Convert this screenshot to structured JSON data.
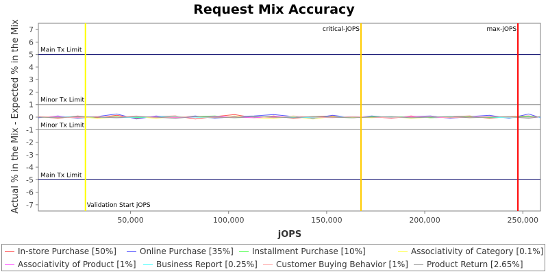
{
  "chart_data": {
    "type": "line",
    "title": "Request Mix Accuracy",
    "xlabel": "jOPS",
    "ylabel": "Actual % in the Mix - Expected % in the Mix",
    "xlim": [
      3000,
      259000
    ],
    "ylim": [
      -7.5,
      7.5
    ],
    "x_ticks": [
      50000,
      100000,
      150000,
      200000,
      250000
    ],
    "x_tick_labels": [
      "50,000",
      "100,000",
      "150,000",
      "200,000",
      "250,000"
    ],
    "y_ticks": [
      -7,
      -6,
      -5,
      -4,
      -3,
      -2,
      -1,
      0,
      1,
      2,
      3,
      4,
      5,
      6,
      7
    ],
    "y_tick_labels": [
      "-7",
      "-6",
      "-5",
      "-4",
      "-3",
      "-2",
      "-1",
      "0",
      "1",
      "2",
      "3",
      "4",
      "5",
      "6",
      "7"
    ],
    "horizontal_lines": [
      {
        "y": 5,
        "label": "Main Tx Limit",
        "color": "#000066"
      },
      {
        "y": 1,
        "label": "Minor Tx Limit",
        "color": "#888888"
      },
      {
        "y": -1,
        "label": "Minor Tx Limit",
        "color": "#888888"
      },
      {
        "y": -5,
        "label": "Main Tx Limit",
        "color": "#000066"
      }
    ],
    "vertical_lines": [
      {
        "x": 27000,
        "label": "Validation Start jOPS",
        "color": "#ffff00",
        "label_pos": "bottom"
      },
      {
        "x": 167500,
        "label": "critical-jOPS",
        "color": "#ffcc00",
        "label_pos": "top"
      },
      {
        "x": 247500,
        "label": "max-jOPS",
        "color": "#ff0000",
        "label_pos": "top"
      }
    ],
    "x": [
      3000,
      13000,
      23000,
      33000,
      43000,
      53000,
      63000,
      73000,
      83000,
      93000,
      103000,
      113000,
      123000,
      133000,
      143000,
      153000,
      163000,
      173000,
      183000,
      193000,
      203000,
      213000,
      223000,
      233000,
      243000,
      253000,
      259000
    ],
    "series": [
      {
        "name": "In-store Purchase [50%]",
        "color": "#ff5555",
        "values": [
          0.05,
          -0.1,
          0.1,
          -0.05,
          0.15,
          -0.1,
          0.05,
          0.1,
          -0.15,
          0.05,
          0.2,
          -0.05,
          0.1,
          -0.1,
          0.05,
          0.1,
          -0.05,
          0.05,
          -0.1,
          0.1,
          -0.05,
          0.05,
          0.1,
          -0.1,
          0.05,
          0.1,
          0.0
        ]
      },
      {
        "name": "Online Purchase [35%]",
        "color": "#5555ff",
        "values": [
          -0.05,
          0.1,
          -0.1,
          0.05,
          0.25,
          -0.15,
          0.1,
          -0.05,
          0.1,
          -0.1,
          0.05,
          0.1,
          0.2,
          0.05,
          -0.1,
          0.15,
          -0.05,
          0.1,
          -0.05,
          0.05,
          0.1,
          -0.1,
          0.05,
          0.15,
          -0.1,
          0.25,
          -0.05
        ]
      },
      {
        "name": "Installment Purchase [10%]",
        "color": "#55ff55",
        "values": [
          0.0,
          0.05,
          -0.05,
          0.0,
          0.05,
          -0.05,
          0.05,
          0.0,
          0.05,
          0.1,
          -0.05,
          0.0,
          0.05,
          -0.05,
          0.05,
          0.0,
          -0.05,
          0.05,
          0.0,
          0.05,
          -0.05,
          0.0,
          0.05,
          -0.05,
          0.0,
          0.05,
          0.0
        ]
      },
      {
        "name": "Associativity of Category [0.1%]",
        "color": "#ffff55",
        "values": [
          0.0,
          -0.05,
          0.05,
          -0.1,
          0.0,
          0.05,
          -0.1,
          0.05,
          0.0,
          -0.05,
          0.1,
          -0.05,
          -0.1,
          0.05,
          -0.15,
          0.05,
          0.0,
          -0.05,
          0.05,
          -0.1,
          0.0,
          0.05,
          -0.05,
          0.0,
          0.05,
          -0.05,
          0.0
        ]
      },
      {
        "name": "Associativity of Product [1%]",
        "color": "#ff55ff",
        "values": [
          0.0,
          0.05,
          0.0,
          0.05,
          -0.05,
          0.0,
          0.05,
          -0.05,
          0.0,
          0.05,
          0.0,
          -0.05,
          0.05,
          0.0,
          -0.05,
          0.0,
          0.05,
          0.0,
          -0.05,
          0.05,
          0.0,
          -0.05,
          0.0,
          0.05,
          0.0,
          -0.05,
          0.0
        ]
      },
      {
        "name": "Business Report [0.25%]",
        "color": "#55ffff",
        "values": [
          0.0,
          0.0,
          0.05,
          0.0,
          -0.05,
          0.0,
          0.0,
          0.05,
          0.0,
          -0.05,
          0.0,
          0.05,
          0.0,
          0.0,
          -0.05,
          0.0,
          0.05,
          0.0,
          0.0,
          -0.05,
          0.0,
          0.05,
          0.0,
          0.0,
          -0.05,
          0.0,
          0.0
        ]
      },
      {
        "name": "Customer Buying Behavior [1%]",
        "color": "#ffaaaa",
        "values": [
          0.05,
          0.0,
          -0.05,
          0.05,
          0.0,
          0.1,
          -0.05,
          0.0,
          0.05,
          -0.05,
          0.0,
          0.05,
          -0.05,
          0.1,
          0.0,
          -0.05,
          0.05,
          0.0,
          -0.05,
          0.0,
          0.05,
          -0.05,
          0.0,
          0.05,
          0.0,
          -0.05,
          0.05
        ]
      },
      {
        "name": "Product Return [2.65%]",
        "color": "#999999",
        "values": [
          0.0,
          -0.05,
          0.05,
          0.0,
          -0.05,
          0.05,
          0.0,
          -0.1,
          0.05,
          0.0,
          -0.05,
          0.05,
          0.0,
          -0.05,
          0.05,
          0.0,
          -0.05,
          0.0,
          0.05,
          -0.05,
          0.0,
          0.05,
          -0.05,
          0.0,
          0.05,
          -0.1,
          0.05
        ]
      }
    ],
    "legend_position": "bottom"
  }
}
